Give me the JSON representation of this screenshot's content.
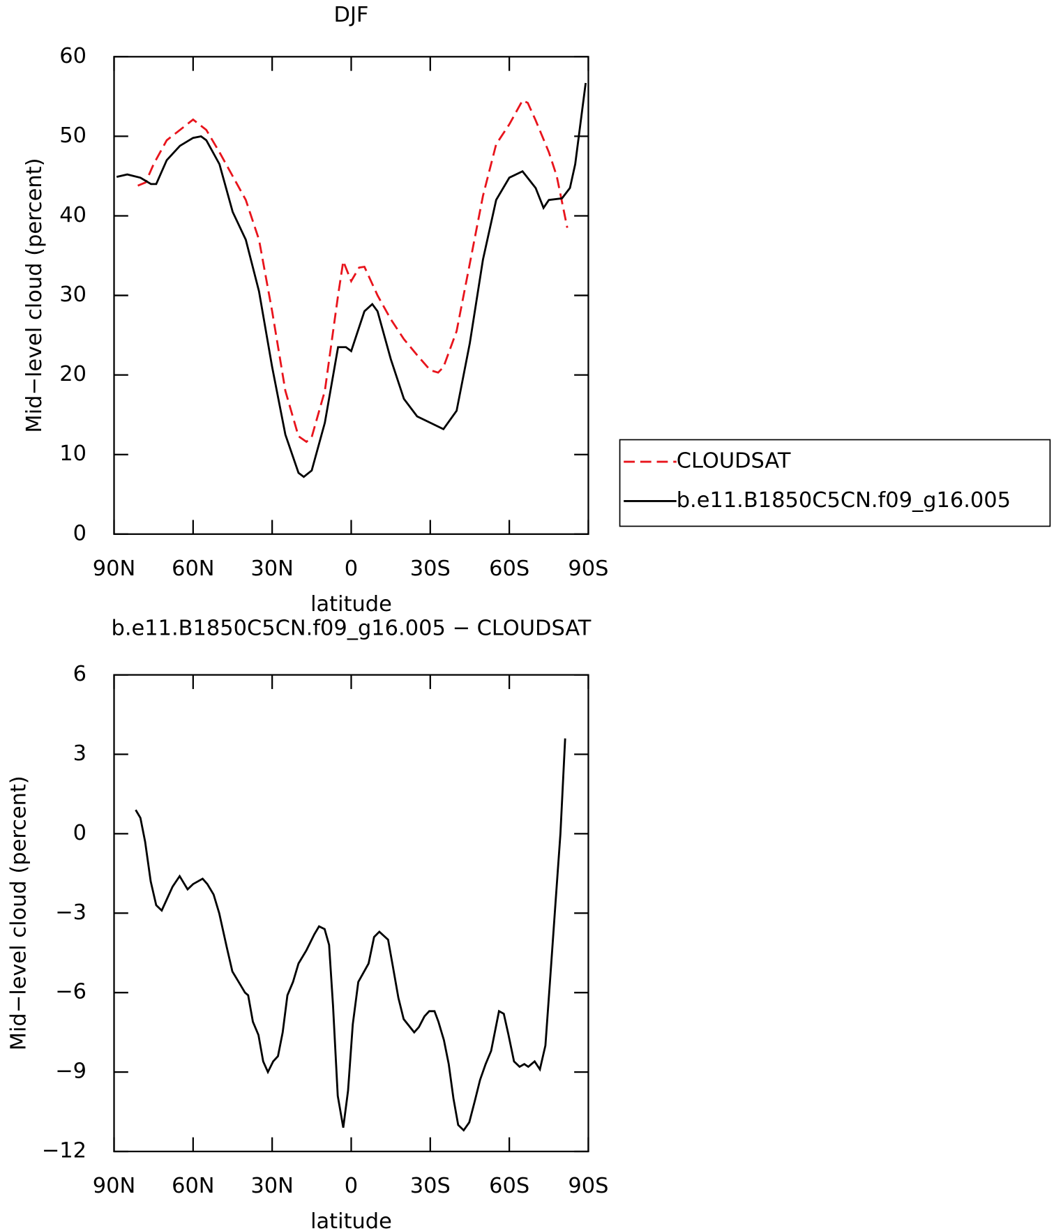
{
  "chart_data": [
    {
      "type": "line",
      "title": "DJF",
      "xlabel": "latitude",
      "ylabel": "Mid−level cloud (percent)",
      "xlim": [
        90,
        -90
      ],
      "xticks": [
        {
          "value": 90,
          "label": "90N"
        },
        {
          "value": 60,
          "label": "60N"
        },
        {
          "value": 30,
          "label": "30N"
        },
        0,
        {
          "value": -30,
          "label": "30S"
        },
        {
          "value": -60,
          "label": "60S"
        },
        {
          "value": -90,
          "label": "90S"
        }
      ],
      "ylim": [
        0,
        60
      ],
      "yticks": [
        0,
        10,
        20,
        30,
        40,
        50,
        60
      ],
      "legend": "right",
      "series": [
        {
          "name": "CLOUDSAT",
          "color": "#e8141c",
          "dashed": true,
          "x": [
            81,
            78,
            75,
            70,
            65,
            60,
            55,
            50,
            45,
            40,
            35,
            30,
            25,
            20,
            17,
            15,
            10,
            5,
            3,
            0,
            -3,
            -5,
            -10,
            -15,
            -20,
            -25,
            -30,
            -33,
            -35,
            -40,
            -45,
            -50,
            -55,
            -60,
            -65,
            -67,
            -70,
            -75,
            -78,
            -82
          ],
          "values": [
            43.8,
            44.2,
            46.5,
            49.5,
            50.8,
            52.1,
            50.8,
            48,
            45,
            42,
            37,
            28,
            18,
            12.3,
            11.6,
            12.2,
            18,
            30,
            34.3,
            31.8,
            33.5,
            33.6,
            30,
            27,
            24.5,
            22.5,
            20.6,
            20.3,
            21,
            25.5,
            34,
            42.5,
            49,
            51.5,
            54.5,
            54.2,
            52,
            48,
            45,
            38.5
          ]
        },
        {
          "name": "b.e11.B1850C5CN.f09_g16.005",
          "color": "#000000",
          "dashed": false,
          "x": [
            89,
            85,
            80,
            76,
            74,
            70,
            65,
            60,
            57,
            55,
            50,
            45,
            40,
            35,
            30,
            25,
            20,
            18,
            15,
            10,
            5,
            2,
            0,
            -5,
            -8,
            -10,
            -15,
            -20,
            -25,
            -30,
            -35,
            -40,
            -45,
            -50,
            -55,
            -60,
            -65,
            -70,
            -73,
            -75,
            -80,
            -83,
            -85,
            -89
          ],
          "values": [
            44.9,
            45.2,
            44.8,
            44.0,
            44.0,
            47.0,
            48.8,
            49.8,
            50.0,
            49.5,
            46.5,
            40.5,
            37.0,
            30.5,
            21,
            12.5,
            7.7,
            7.2,
            8.0,
            14,
            23.5,
            23.5,
            23,
            28,
            28.9,
            28,
            22,
            17,
            14.8,
            14,
            13.2,
            15.5,
            24,
            34.5,
            42,
            44.8,
            45.6,
            43.5,
            41,
            42,
            42.2,
            43.5,
            46.5,
            56.7
          ]
        }
      ]
    },
    {
      "type": "line",
      "title": "b.e11.B1850C5CN.f09_g16.005 − CLOUDSAT",
      "xlabel": "latitude",
      "ylabel": "Mid−level cloud (percent)",
      "xlim": [
        90,
        -90
      ],
      "xticks": [
        {
          "value": 90,
          "label": "90N"
        },
        {
          "value": 60,
          "label": "60N"
        },
        {
          "value": 30,
          "label": "30N"
        },
        0,
        {
          "value": -30,
          "label": "30S"
        },
        {
          "value": -60,
          "label": "60S"
        },
        {
          "value": -90,
          "label": "90S"
        }
      ],
      "ylim": [
        -12,
        6
      ],
      "yticks": [
        {
          "value": -12,
          "label": "−12"
        },
        {
          "value": -9,
          "label": "−9"
        },
        {
          "value": -6,
          "label": "−6"
        },
        {
          "value": -3,
          "label": "−3"
        },
        0,
        3,
        6
      ],
      "series": [
        {
          "color": "#000000",
          "dashed": false,
          "x": [
            81.8,
            80,
            78.2,
            76.1,
            74,
            71.9,
            70.1,
            67.8,
            65.1,
            62.1,
            60,
            56.4,
            54.6,
            52.2,
            50.1,
            47.2,
            45.1,
            42.1,
            40.3,
            39.1,
            37.3,
            35.2,
            33.4,
            31.6,
            29.6,
            27.8,
            26,
            24.2,
            22.1,
            20,
            17,
            14,
            12.2,
            10.1,
            8.4,
            6.9,
            5.1,
            3,
            1.2,
            -0.6,
            -2.7,
            -6.6,
            -8.7,
            -10.7,
            -14,
            -15.8,
            -17.9,
            -19.9,
            -23.9,
            -25.7,
            -27.8,
            -29.6,
            -31.6,
            -33.1,
            -35.2,
            -37,
            -38.8,
            -40.6,
            -42.7,
            -44.8,
            -46.9,
            -48.9,
            -51,
            -53.1,
            -56.1,
            -57.9,
            -59.7,
            -61.8,
            -63.9,
            -65.7,
            -67.2,
            -69.6,
            -71.6,
            -73.7,
            -75.5,
            -77.6,
            -79.4,
            -81.2
          ],
          "values": [
            0.9,
            0.6,
            -0.3,
            -1.8,
            -2.7,
            -2.9,
            -2.5,
            -2.0,
            -1.6,
            -2.1,
            -1.9,
            -1.7,
            -1.9,
            -2.3,
            -3.0,
            -4.3,
            -5.2,
            -5.7,
            -6.0,
            -6.1,
            -7.1,
            -7.6,
            -8.6,
            -9.0,
            -8.6,
            -8.4,
            -7.5,
            -6.1,
            -5.6,
            -4.9,
            -4.4,
            -3.8,
            -3.5,
            -3.6,
            -4.2,
            -6.5,
            -9.9,
            -11.1,
            -9.7,
            -7.2,
            -5.6,
            -4.9,
            -3.9,
            -3.7,
            -4.0,
            -5.0,
            -6.2,
            -7.0,
            -7.5,
            -7.3,
            -6.9,
            -6.7,
            -6.7,
            -7.1,
            -7.8,
            -8.7,
            -10.0,
            -11.0,
            -11.2,
            -10.9,
            -10.1,
            -9.3,
            -8.7,
            -8.2,
            -6.7,
            -6.8,
            -7.6,
            -8.6,
            -8.8,
            -8.7,
            -8.8,
            -8.6,
            -8.9,
            -8.0,
            -5.5,
            -2.5,
            0,
            3.6
          ]
        }
      ]
    }
  ]
}
